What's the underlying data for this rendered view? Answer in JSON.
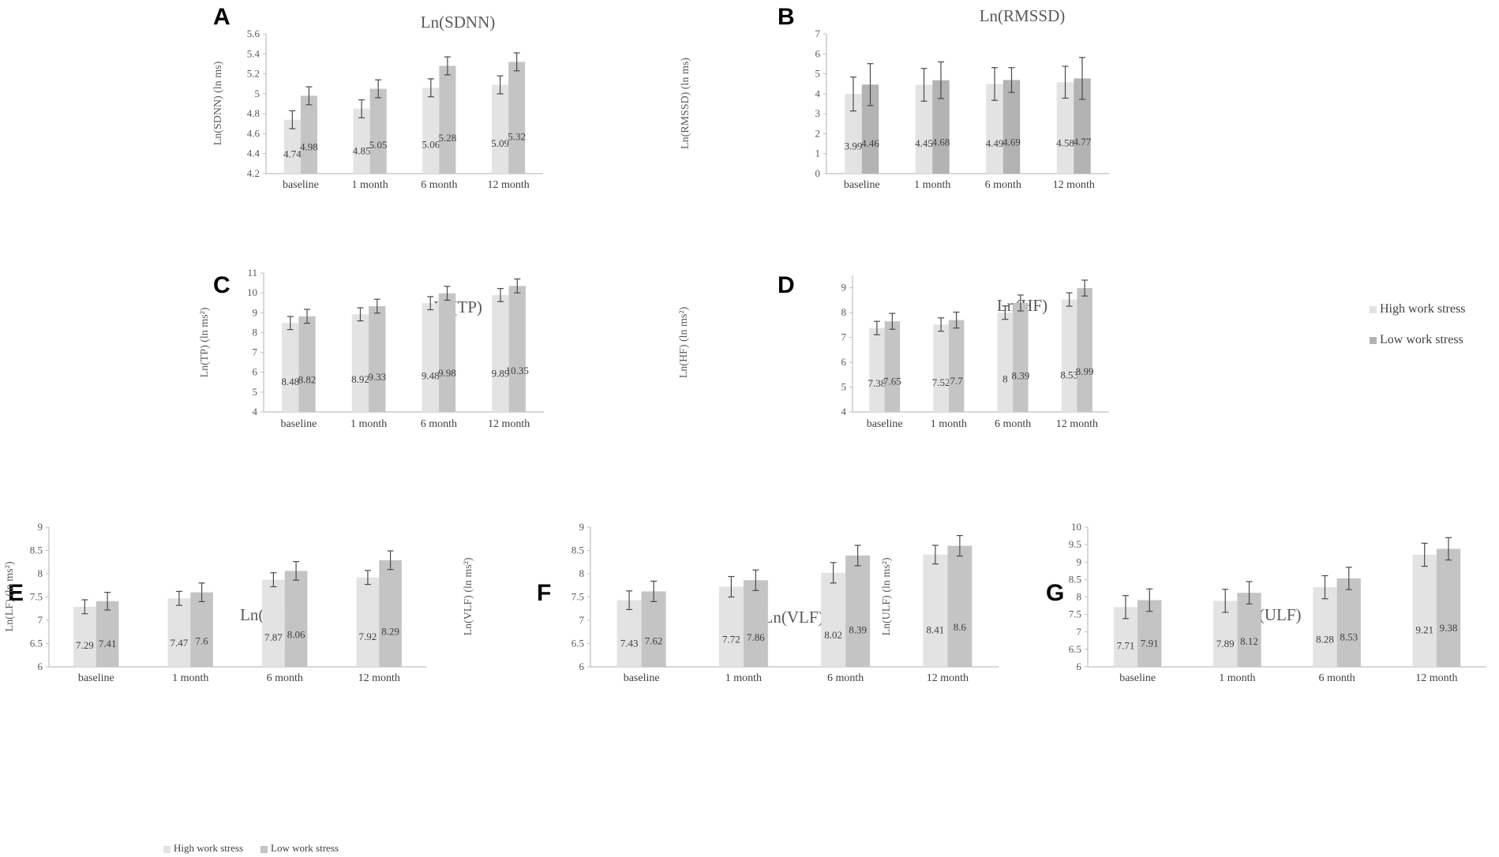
{
  "colors": {
    "high": "#e3e3e3",
    "low_light": "#c4c4c4",
    "low_dark": "#b3b3b3",
    "axis": "#bfbfbf",
    "error": "#4a4a4a"
  },
  "legend": {
    "high_label": "High work stress",
    "low_label": "Low work stress"
  },
  "chart_data": [
    {
      "panel": "A",
      "type": "bar",
      "title": "Ln(SDNN)",
      "ylabel": "Ln(SDNN)  (ln ms)",
      "categories": [
        "baseline",
        "1 month",
        "6 month",
        "12 month"
      ],
      "ylim": [
        4.2,
        5.6
      ],
      "yticks": [
        "4.2",
        "4.4",
        "4.6",
        "4.8",
        "5",
        "5.2",
        "5.4",
        "5.6"
      ],
      "series": [
        {
          "name": "High work stress",
          "values": [
            4.74,
            4.85,
            5.06,
            5.09
          ],
          "labels": [
            "4.74",
            "4.85",
            "5.06",
            "5.09"
          ],
          "errors": [
            0.09,
            0.09,
            0.09,
            0.09
          ]
        },
        {
          "name": "Low work stress",
          "values": [
            4.98,
            5.05,
            5.28,
            5.32
          ],
          "labels": [
            "4.98",
            "5.05",
            "5.28",
            "5.32"
          ],
          "errors": [
            0.09,
            0.09,
            0.09,
            0.09
          ]
        }
      ]
    },
    {
      "panel": "B",
      "type": "bar",
      "title": "Ln(RMSSD)",
      "ylabel": "Ln(RMSSD)  (ln ms)",
      "categories": [
        "baseline",
        "1 month",
        "6 month",
        "12 month"
      ],
      "ylim": [
        0,
        7
      ],
      "yticks": [
        "0",
        "1",
        "2",
        "3",
        "4",
        "5",
        "6",
        "7"
      ],
      "series": [
        {
          "name": "High work stress",
          "values": [
            3.99,
            4.45,
            4.49,
            4.58
          ],
          "labels": [
            "3.99",
            "4.45",
            "4.49",
            "4.58"
          ],
          "errors": [
            0.85,
            0.82,
            0.82,
            0.8
          ]
        },
        {
          "name": "Low work stress",
          "values": [
            4.46,
            4.68,
            4.69,
            4.77
          ],
          "labels": [
            "4.46",
            "4.68",
            "4.69",
            "4.77"
          ],
          "errors": [
            1.05,
            0.92,
            0.62,
            1.05
          ]
        }
      ]
    },
    {
      "panel": "C",
      "type": "bar",
      "title": "Ln(TP)",
      "ylabel": "Ln(TP)  (ln ms²)",
      "categories": [
        "baseline",
        "1 month",
        "6 month",
        "12 month"
      ],
      "ylim": [
        4,
        11
      ],
      "yticks": [
        "4",
        "5",
        "6",
        "7",
        "8",
        "9",
        "10",
        "11"
      ],
      "series": [
        {
          "name": "High work stress",
          "values": [
            8.48,
            8.92,
            9.48,
            9.89
          ],
          "labels": [
            "8.48",
            "8.92",
            "9.48",
            "9.89"
          ],
          "errors": [
            0.33,
            0.33,
            0.33,
            0.33
          ]
        },
        {
          "name": "Low work stress",
          "values": [
            8.82,
            9.33,
            9.98,
            10.35
          ],
          "labels": [
            "8.82",
            "9.33",
            "9.98",
            "10.35"
          ],
          "errors": [
            0.35,
            0.35,
            0.35,
            0.35
          ]
        }
      ]
    },
    {
      "panel": "D",
      "type": "bar",
      "title": "Ln(HF)",
      "ylabel": "Ln(HF)  (ln ms²)",
      "categories": [
        "baseline",
        "1 month",
        "6 month",
        "12 month"
      ],
      "ylim": [
        4,
        9.5
      ],
      "yticks": [
        "4",
        "5",
        "6",
        "7",
        "8",
        "9"
      ],
      "series": [
        {
          "name": "High work stress",
          "values": [
            7.38,
            7.52,
            8,
            8.53
          ],
          "labels": [
            "7.38",
            "7.52",
            "8",
            "8.53"
          ],
          "errors": [
            0.27,
            0.27,
            0.27,
            0.27
          ]
        },
        {
          "name": "Low work stress",
          "values": [
            7.65,
            7.7,
            8.39,
            8.99
          ],
          "labels": [
            "7.65",
            "7.7",
            "8.39",
            "8.99"
          ],
          "errors": [
            0.32,
            0.32,
            0.32,
            0.32
          ]
        }
      ]
    },
    {
      "panel": "E",
      "type": "bar",
      "title": "Ln(LF)",
      "ylabel": "Ln(LF)  (ln ms²)",
      "categories": [
        "baseline",
        "1 month",
        "6 month",
        "12 month"
      ],
      "ylim": [
        6,
        9
      ],
      "yticks": [
        "6",
        "6.5",
        "7",
        "7.5",
        "8",
        "8.5",
        "9"
      ],
      "series": [
        {
          "name": "High work stress",
          "values": [
            7.29,
            7.47,
            7.87,
            7.92
          ],
          "labels": [
            "7.29",
            "7.47",
            "7.87",
            "7.92"
          ],
          "errors": [
            0.15,
            0.15,
            0.15,
            0.15
          ]
        },
        {
          "name": "Low work stress",
          "values": [
            7.41,
            7.6,
            8.06,
            8.29
          ],
          "labels": [
            "7.41",
            "7.6",
            "8.06",
            "8.29"
          ],
          "errors": [
            0.19,
            0.2,
            0.2,
            0.2
          ]
        }
      ]
    },
    {
      "panel": "F",
      "type": "bar",
      "title": "Ln(VLF)",
      "ylabel": "Ln(VLF)  (ln ms²)",
      "categories": [
        "baseline",
        "1 month",
        "6 month",
        "12 month"
      ],
      "ylim": [
        6,
        9
      ],
      "yticks": [
        "6",
        "6.5",
        "7",
        "7.5",
        "8",
        "8.5",
        "9"
      ],
      "series": [
        {
          "name": "High work stress",
          "values": [
            7.43,
            7.72,
            8.02,
            8.41
          ],
          "labels": [
            "7.43",
            "7.72",
            "8.02",
            "8.41"
          ],
          "errors": [
            0.2,
            0.22,
            0.22,
            0.2
          ]
        },
        {
          "name": "Low work stress",
          "values": [
            7.62,
            7.86,
            8.39,
            8.6
          ],
          "labels": [
            "7.62",
            "7.86",
            "8.39",
            "8.6"
          ],
          "errors": [
            0.22,
            0.22,
            0.22,
            0.22
          ]
        }
      ]
    },
    {
      "panel": "G",
      "type": "bar",
      "title": "Ln(ULF)",
      "ylabel": "Ln(ULF)  (ln ms²)",
      "categories": [
        "baseline",
        "1 month",
        "6 month",
        "12 month"
      ],
      "ylim": [
        6,
        10
      ],
      "yticks": [
        "6",
        "6.5",
        "7",
        "7.5",
        "8",
        "8.5",
        "9",
        "9.5",
        "10"
      ],
      "series": [
        {
          "name": "High work stress",
          "values": [
            7.71,
            7.89,
            8.28,
            9.21
          ],
          "labels": [
            "7.71",
            "7.89",
            "8.28",
            "9.21"
          ],
          "errors": [
            0.33,
            0.33,
            0.33,
            0.33
          ]
        },
        {
          "name": "Low work stress",
          "values": [
            7.91,
            8.12,
            8.53,
            9.38
          ],
          "labels": [
            "7.91",
            "8.12",
            "8.53",
            "9.38"
          ],
          "errors": [
            0.32,
            0.32,
            0.32,
            0.32
          ]
        }
      ]
    }
  ]
}
